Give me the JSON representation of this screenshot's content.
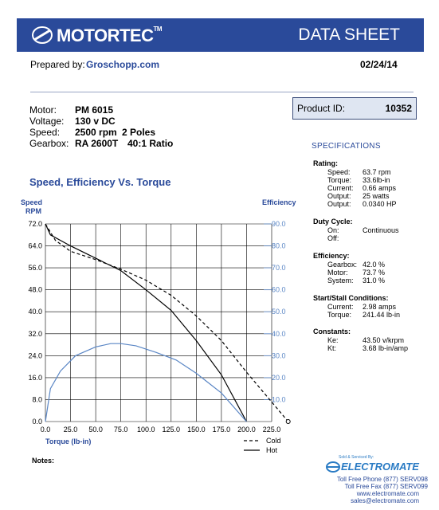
{
  "header": {
    "brand": "MOTORTEC",
    "tm": "TM",
    "title": "DATA SHEET"
  },
  "prepared": {
    "label": "Prepared by:",
    "value": "Groschopp.com",
    "date": "02/24/14"
  },
  "motor": {
    "rows": [
      {
        "label": "Motor:",
        "value": "PM  6015",
        "extra": ""
      },
      {
        "label": "Voltage:",
        "value": "130 v DC",
        "extra": ""
      },
      {
        "label": "Speed:",
        "value": "2500 rpm",
        "extra": "2 Poles"
      },
      {
        "label": "Gearbox:",
        "value": "RA 2600T",
        "extra": "40:1 Ratio"
      }
    ]
  },
  "product": {
    "label": "Product ID:",
    "value": "10352"
  },
  "specs": {
    "title": "SPECIFICATIONS",
    "rating": {
      "heading": "Rating:",
      "rows": [
        [
          "Speed:",
          "63.7 rpm"
        ],
        [
          "Torque:",
          "33.6lb-in"
        ],
        [
          "Current:",
          "0.66 amps"
        ],
        [
          "Output:",
          "25 watts"
        ],
        [
          "Output:",
          "0.0340 HP"
        ]
      ]
    },
    "duty": {
      "heading": "Duty Cycle:",
      "rows": [
        [
          "On:",
          "Continuous"
        ],
        [
          "Off:",
          ""
        ]
      ]
    },
    "efficiency": {
      "heading": "Efficiency:",
      "rows": [
        [
          "Gearbox:",
          "42.0 %"
        ],
        [
          "Motor:",
          "73.7 %"
        ],
        [
          "System:",
          "31.0 %"
        ]
      ]
    },
    "stall": {
      "heading": "Start/Stall Conditions:",
      "rows": [
        [
          "Current:",
          "2.98 amps"
        ],
        [
          "Torque:",
          "241.44 lb-in"
        ]
      ]
    },
    "constants": {
      "heading": "Constants:",
      "rows": [
        [
          "Ke:",
          "43.50 v/krpm"
        ],
        [
          "Kt:",
          "3.68 lb-in/amp"
        ]
      ]
    }
  },
  "chart_title": "Speed, Efficiency Vs. Torque",
  "notes": "Notes:",
  "electromate": {
    "sold_by": "Sold & Serviced By:",
    "name": "ELECTROMATE",
    "lines": [
      "Toll Free Phone  (877) SERV098",
      "Toll Free Fax  (877) SERV099",
      "www.electromate.com",
      "sales@electromate.com"
    ]
  },
  "colors": {
    "brand_blue": "#2a4a9a",
    "efficiency_blue": "#5a86c5",
    "box_fill": "#dfe6f2"
  },
  "chart_data": {
    "type": "line",
    "xlabel": "Torque  (lb-in)",
    "ylabel_left": "Speed RPM",
    "ylabel_left_parts": [
      "Speed",
      "RPM"
    ],
    "ylabel_right": "Efficiency",
    "xlim": [
      0,
      225
    ],
    "ylim_left": [
      0,
      72
    ],
    "ylim_right": [
      0,
      90
    ],
    "x_ticks": [
      "0.0",
      "25.0",
      "50.0",
      "75.0",
      "100.0",
      "125.0",
      "150.0",
      "175.0",
      "200.0",
      "225.0"
    ],
    "y_left_ticks": [
      "0.0",
      "8.0",
      "16.0",
      "24.0",
      "32.0",
      "40.0",
      "48.0",
      "56.0",
      "64.0",
      "72.0"
    ],
    "y_right_ticks": [
      "10.0",
      "20.0",
      "30.0",
      "40.0",
      "50.0",
      "60.0",
      "70.0",
      "80.0",
      "90.0"
    ],
    "grid": true,
    "legend": [
      {
        "name": "Cold",
        "style": "dashed"
      },
      {
        "name": "Hot",
        "style": "solid"
      }
    ],
    "series": [
      {
        "name": "Cold",
        "axis": "left",
        "style": "dashed",
        "x": [
          0,
          10,
          25,
          50,
          75,
          100,
          125,
          150,
          175,
          200,
          241.4
        ],
        "y": [
          72,
          66,
          62,
          59,
          55.5,
          51.5,
          46,
          38.5,
          29.5,
          18,
          0
        ]
      },
      {
        "name": "Hot",
        "axis": "left",
        "style": "solid",
        "x": [
          0,
          5,
          25,
          50,
          75,
          100,
          125,
          150,
          175,
          200
        ],
        "y": [
          72,
          68,
          64,
          59.5,
          55,
          48,
          40.5,
          29.5,
          17,
          0
        ]
      },
      {
        "name": "Efficiency",
        "axis": "right",
        "style": "blue",
        "x": [
          0,
          5,
          15,
          30,
          50,
          65,
          75,
          90,
          110,
          130,
          150,
          175,
          200
        ],
        "y": [
          0,
          15,
          23,
          30,
          34,
          35.5,
          35.5,
          34.5,
          31.5,
          28,
          22,
          13,
          0
        ]
      }
    ]
  }
}
